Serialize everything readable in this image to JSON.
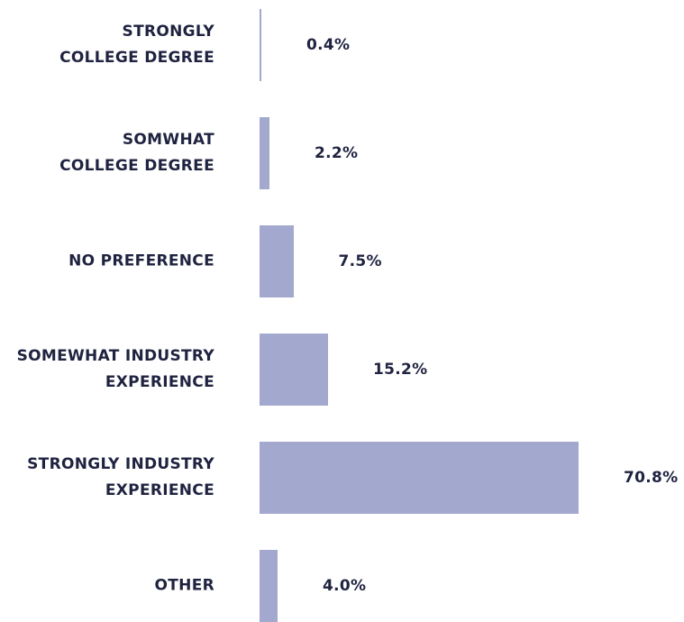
{
  "chart_data": {
    "type": "barh",
    "categories": [
      "STRONGLY\nCOLLEGE DEGREE",
      "SOMWHAT\nCOLLEGE DEGREE",
      "NO PREFERENCE",
      "SOMEWHAT INDUSTRY\nEXPERIENCE",
      "STRONGLY INDUSTRY\nEXPERIENCE",
      "OTHER"
    ],
    "values": [
      0.4,
      2.2,
      7.5,
      15.2,
      70.8,
      4.0
    ],
    "value_labels": [
      "0.4%",
      "2.2%",
      "7.5%",
      "15.2%",
      "70.8%",
      "4.0%"
    ],
    "color": "#a3a9ce"
  }
}
